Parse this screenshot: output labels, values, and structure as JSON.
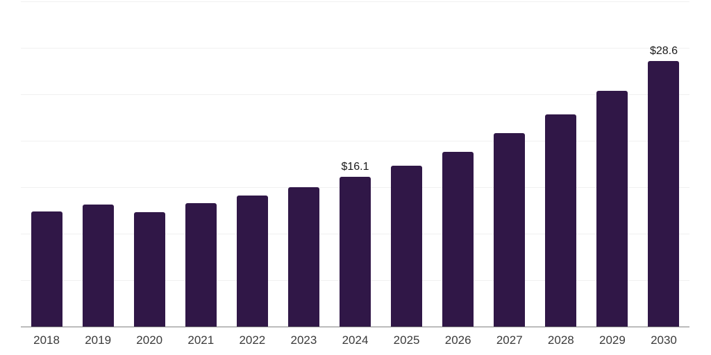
{
  "chart_data": {
    "type": "bar",
    "title": "",
    "xlabel": "",
    "ylabel": "",
    "categories": [
      "2018",
      "2019",
      "2020",
      "2021",
      "2022",
      "2023",
      "2024",
      "2025",
      "2026",
      "2027",
      "2028",
      "2029",
      "2030"
    ],
    "values": [
      12.4,
      13.1,
      12.3,
      13.3,
      14.1,
      15.0,
      16.1,
      17.3,
      18.8,
      20.8,
      22.8,
      25.4,
      28.6
    ],
    "data_labels": {
      "2024": "$16.1",
      "2030": "$28.6"
    },
    "ylim": [
      0,
      35
    ],
    "grid_step": 5,
    "grid": "horizontal-only",
    "legend_position": "none",
    "colors": {
      "bar": "#301747",
      "grid": "#f0f0f0",
      "axis": "#808080",
      "tick_label": "#3a3a3a",
      "data_label": "#1a1a1a",
      "background": "#ffffff"
    }
  }
}
